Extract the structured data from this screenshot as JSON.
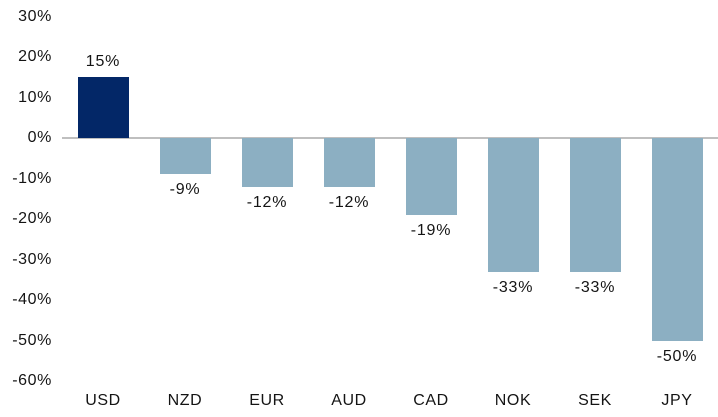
{
  "chart_data": {
    "type": "bar",
    "categories": [
      "USD",
      "NZD",
      "EUR",
      "AUD",
      "CAD",
      "NOK",
      "SEK",
      "JPY"
    ],
    "values": [
      15,
      -9,
      -12,
      -12,
      -19,
      -33,
      -33,
      -50
    ],
    "data_labels": [
      "15%",
      "-9%",
      "-12%",
      "-12%",
      "-19%",
      "-33%",
      "-33%",
      "-50%"
    ],
    "title": "",
    "xlabel": "",
    "ylabel": "",
    "ylim": [
      -60,
      30
    ],
    "yticks": [
      30,
      20,
      10,
      0,
      -10,
      -20,
      -30,
      -40,
      -50,
      -60
    ],
    "ytick_labels": [
      "30%",
      "20%",
      "10%",
      "0%",
      "-10%",
      "-20%",
      "-30%",
      "-40%",
      "-50%",
      "-60%"
    ],
    "grid": false,
    "legend": false,
    "zero_baseline": true,
    "highlight_category": "USD",
    "colors": {
      "highlight_bar": "#032767",
      "default_bar": "#8cafc2",
      "zero_line": "#bfbfbf",
      "text": "#141414",
      "background": "#ffffff"
    }
  }
}
